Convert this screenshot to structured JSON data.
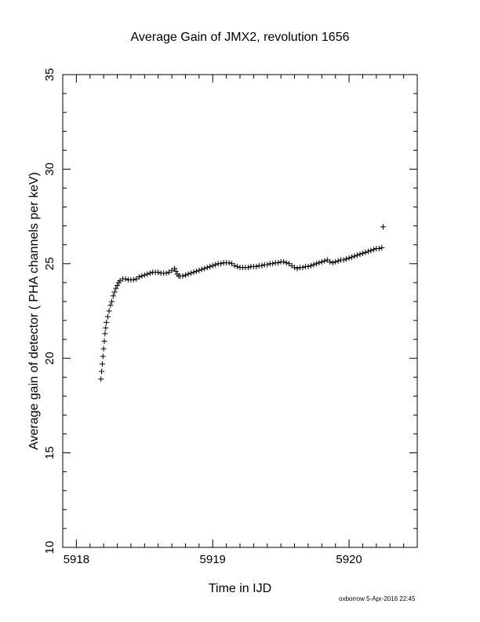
{
  "chart_data": {
    "type": "scatter",
    "title": "Average Gain of JMX2, revolution 1656",
    "xlabel": "Time in IJD",
    "ylabel": "Average gain of detector ( PHA channels per keV)",
    "xlim": [
      5917.9,
      5920.5
    ],
    "ylim": [
      10,
      35
    ],
    "xticks": [
      "5918",
      "5919",
      "5920"
    ],
    "yticks": [
      "10",
      "15",
      "20",
      "25",
      "30",
      "35"
    ],
    "marker": "+",
    "series": [
      {
        "points": [
          [
            5918.18,
            18.9
          ],
          [
            5918.185,
            19.3
          ],
          [
            5918.19,
            19.7
          ],
          [
            5918.195,
            20.1
          ],
          [
            5918.2,
            20.5
          ],
          [
            5918.205,
            20.9
          ],
          [
            5918.21,
            21.3
          ],
          [
            5918.215,
            21.6
          ],
          [
            5918.22,
            21.9
          ],
          [
            5918.23,
            22.2
          ],
          [
            5918.24,
            22.5
          ],
          [
            5918.25,
            22.8
          ],
          [
            5918.26,
            23.0
          ],
          [
            5918.27,
            23.3
          ],
          [
            5918.28,
            23.5
          ],
          [
            5918.29,
            23.7
          ],
          [
            5918.3,
            23.85
          ],
          [
            5918.31,
            24.0
          ],
          [
            5918.32,
            24.1
          ],
          [
            5918.34,
            24.2
          ],
          [
            5918.36,
            24.2
          ],
          [
            5918.38,
            24.15
          ],
          [
            5918.4,
            24.15
          ],
          [
            5918.42,
            24.15
          ],
          [
            5918.44,
            24.2
          ],
          [
            5918.46,
            24.3
          ],
          [
            5918.48,
            24.35
          ],
          [
            5918.5,
            24.4
          ],
          [
            5918.52,
            24.45
          ],
          [
            5918.54,
            24.5
          ],
          [
            5918.56,
            24.55
          ],
          [
            5918.58,
            24.55
          ],
          [
            5918.6,
            24.55
          ],
          [
            5918.62,
            24.5
          ],
          [
            5918.64,
            24.5
          ],
          [
            5918.66,
            24.5
          ],
          [
            5918.68,
            24.55
          ],
          [
            5918.7,
            24.65
          ],
          [
            5918.72,
            24.75
          ],
          [
            5918.73,
            24.6
          ],
          [
            5918.74,
            24.45
          ],
          [
            5918.75,
            24.35
          ],
          [
            5918.76,
            24.35
          ],
          [
            5918.78,
            24.35
          ],
          [
            5918.8,
            24.4
          ],
          [
            5918.82,
            24.45
          ],
          [
            5918.84,
            24.5
          ],
          [
            5918.86,
            24.55
          ],
          [
            5918.88,
            24.6
          ],
          [
            5918.9,
            24.65
          ],
          [
            5918.92,
            24.7
          ],
          [
            5918.94,
            24.75
          ],
          [
            5918.96,
            24.8
          ],
          [
            5918.98,
            24.85
          ],
          [
            5919.0,
            24.9
          ],
          [
            5919.02,
            24.95
          ],
          [
            5919.04,
            25.0
          ],
          [
            5919.06,
            25.0
          ],
          [
            5919.08,
            25.05
          ],
          [
            5919.1,
            25.05
          ],
          [
            5919.12,
            25.05
          ],
          [
            5919.14,
            25.0
          ],
          [
            5919.16,
            24.9
          ],
          [
            5919.18,
            24.85
          ],
          [
            5919.2,
            24.8
          ],
          [
            5919.22,
            24.8
          ],
          [
            5919.24,
            24.8
          ],
          [
            5919.26,
            24.8
          ],
          [
            5919.28,
            24.85
          ],
          [
            5919.3,
            24.85
          ],
          [
            5919.32,
            24.85
          ],
          [
            5919.34,
            24.9
          ],
          [
            5919.36,
            24.9
          ],
          [
            5919.38,
            24.95
          ],
          [
            5919.4,
            24.95
          ],
          [
            5919.42,
            25.0
          ],
          [
            5919.44,
            25.0
          ],
          [
            5919.46,
            25.05
          ],
          [
            5919.48,
            25.05
          ],
          [
            5919.5,
            25.1
          ],
          [
            5919.52,
            25.1
          ],
          [
            5919.54,
            25.05
          ],
          [
            5919.56,
            25.0
          ],
          [
            5919.58,
            24.9
          ],
          [
            5919.6,
            24.8
          ],
          [
            5919.62,
            24.75
          ],
          [
            5919.64,
            24.8
          ],
          [
            5919.66,
            24.8
          ],
          [
            5919.68,
            24.85
          ],
          [
            5919.7,
            24.85
          ],
          [
            5919.72,
            24.9
          ],
          [
            5919.74,
            24.95
          ],
          [
            5919.76,
            25.0
          ],
          [
            5919.78,
            25.05
          ],
          [
            5919.8,
            25.1
          ],
          [
            5919.82,
            25.15
          ],
          [
            5919.84,
            25.2
          ],
          [
            5919.86,
            25.1
          ],
          [
            5919.88,
            25.05
          ],
          [
            5919.9,
            25.1
          ],
          [
            5919.92,
            25.15
          ],
          [
            5919.94,
            25.2
          ],
          [
            5919.96,
            25.2
          ],
          [
            5919.98,
            25.25
          ],
          [
            5920.0,
            25.3
          ],
          [
            5920.02,
            25.35
          ],
          [
            5920.04,
            25.4
          ],
          [
            5920.06,
            25.45
          ],
          [
            5920.08,
            25.5
          ],
          [
            5920.1,
            25.55
          ],
          [
            5920.12,
            25.6
          ],
          [
            5920.14,
            25.65
          ],
          [
            5920.16,
            25.7
          ],
          [
            5920.18,
            25.75
          ],
          [
            5920.2,
            25.8
          ],
          [
            5920.22,
            25.8
          ],
          [
            5920.24,
            25.85
          ],
          [
            5920.25,
            26.95
          ]
        ]
      }
    ]
  },
  "footer": "oxborrow  5-Apr-2016 22:45"
}
